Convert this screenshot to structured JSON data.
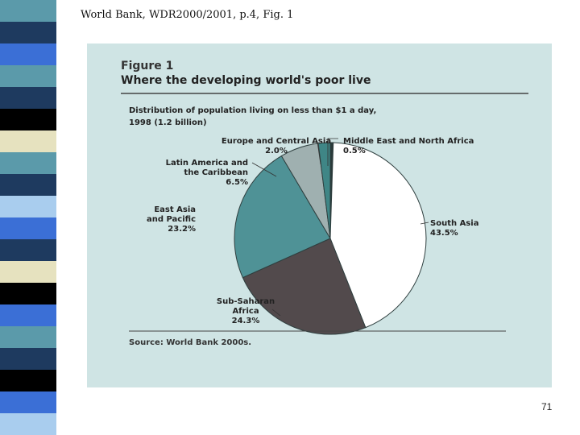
{
  "slide": {
    "header": "World Bank, WDR2000/2001, p.4, Fig. 1",
    "page_number": "71",
    "stripe_colors": [
      "#5b9aaa",
      "#1e3a5f",
      "#3b6fd6",
      "#5b9aaa",
      "#1e3a5f",
      "#000000",
      "#e6e2bf",
      "#5b9aaa",
      "#1e3a5f",
      "#a9cdee",
      "#3b6fd6",
      "#1e3a5f",
      "#e6e2bf",
      "#000000",
      "#3b6fd6",
      "#5b9aaa",
      "#1e3a5f",
      "#000000",
      "#3b6fd6",
      "#a9cdee"
    ]
  },
  "chart_data": {
    "type": "pie",
    "figure_number": "Figure 1",
    "title": "Where the developing world's poor live",
    "subtitle_line1": "Distribution of population living on less than $1 a day,",
    "subtitle_line2": "1998 (1.2 billion)",
    "source": "Source: World Bank 2000s.",
    "slices": [
      {
        "name": "Middle East and North Africa",
        "name_lines": [
          "Middle East and North Africa"
        ],
        "value": 0.5,
        "label": "0.5%",
        "color": "#2a3a3a"
      },
      {
        "name": "South Asia",
        "name_lines": [
          "South Asia"
        ],
        "value": 43.5,
        "label": "43.5%",
        "color": "#ffffff"
      },
      {
        "name": "Sub-Saharan Africa",
        "name_lines": [
          "Sub-Saharan",
          "Africa"
        ],
        "value": 24.3,
        "label": "24.3%",
        "color": "#524a4c"
      },
      {
        "name": "East Asia and Pacific",
        "name_lines": [
          "East Asia",
          "and Pacific"
        ],
        "value": 23.2,
        "label": "23.2%",
        "color": "#4f9296"
      },
      {
        "name": "Latin America and the Caribbean",
        "name_lines": [
          "Latin America and",
          "the Caribbean"
        ],
        "value": 6.5,
        "label": "6.5%",
        "color": "#9fb0b0"
      },
      {
        "name": "Europe and Central Asia",
        "name_lines": [
          "Europe and Central Asia"
        ],
        "value": 2.0,
        "label": "2.0%",
        "color": "#3f8686"
      }
    ]
  }
}
